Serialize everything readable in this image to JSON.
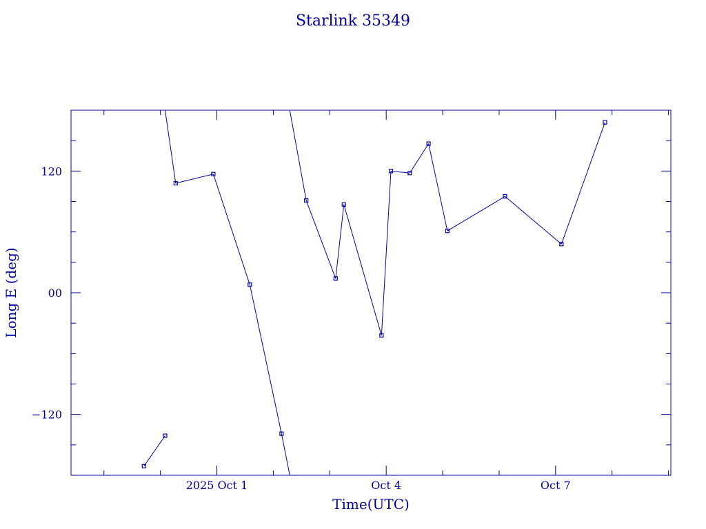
{
  "chart_data": {
    "type": "line",
    "title": "Starlink 35349",
    "xlabel": "Time(UTC)",
    "ylabel": "Long E (deg)",
    "x_ticks": [
      {
        "label": "2025 Oct  1",
        "date": "2025-10-01"
      },
      {
        "label": "Oct  4",
        "date": "2025-10-04"
      },
      {
        "label": "Oct  7",
        "date": "2025-10-07"
      }
    ],
    "y_ticks": [
      {
        "label": "120",
        "value": 120
      },
      {
        "label": "00",
        "value": 0
      },
      {
        "label": "−120",
        "value": -120
      }
    ],
    "xlim": [
      "2025-09-28T10:00",
      "2025-10-09T01:00"
    ],
    "ylim": [
      -180,
      180
    ],
    "grid": false,
    "color": "#0000a0",
    "series": [
      {
        "points": [
          {
            "t": "2025-09-29T17:00",
            "lon": -171
          },
          {
            "t": "2025-09-30T02:00",
            "lon": -141
          },
          {
            "t": "2025-09-30T02:00",
            "lon": 180
          },
          {
            "t": "2025-09-30T06:30",
            "lon": 108
          },
          {
            "t": "2025-09-30T22:30",
            "lon": 117
          },
          {
            "t": "2025-10-01T14:00",
            "lon": 8
          },
          {
            "t": "2025-10-02T03:30",
            "lon": -139
          },
          {
            "t": "2025-10-02T07:00",
            "lon": -180
          },
          {
            "t": "2025-10-02T07:00",
            "lon": 180
          },
          {
            "t": "2025-10-02T14:00",
            "lon": 91
          },
          {
            "t": "2025-10-03T02:30",
            "lon": 14
          },
          {
            "t": "2025-10-03T06:00",
            "lon": 87
          },
          {
            "t": "2025-10-03T22:00",
            "lon": -42
          },
          {
            "t": "2025-10-04T02:00",
            "lon": 120
          },
          {
            "t": "2025-10-04T10:00",
            "lon": 118
          },
          {
            "t": "2025-10-04T18:00",
            "lon": 147
          },
          {
            "t": "2025-10-05T02:00",
            "lon": 61
          },
          {
            "t": "2025-10-06T02:30",
            "lon": 95
          },
          {
            "t": "2025-10-07T02:30",
            "lon": 48
          },
          {
            "t": "2025-10-07T21:00",
            "lon": 168
          }
        ]
      }
    ]
  }
}
